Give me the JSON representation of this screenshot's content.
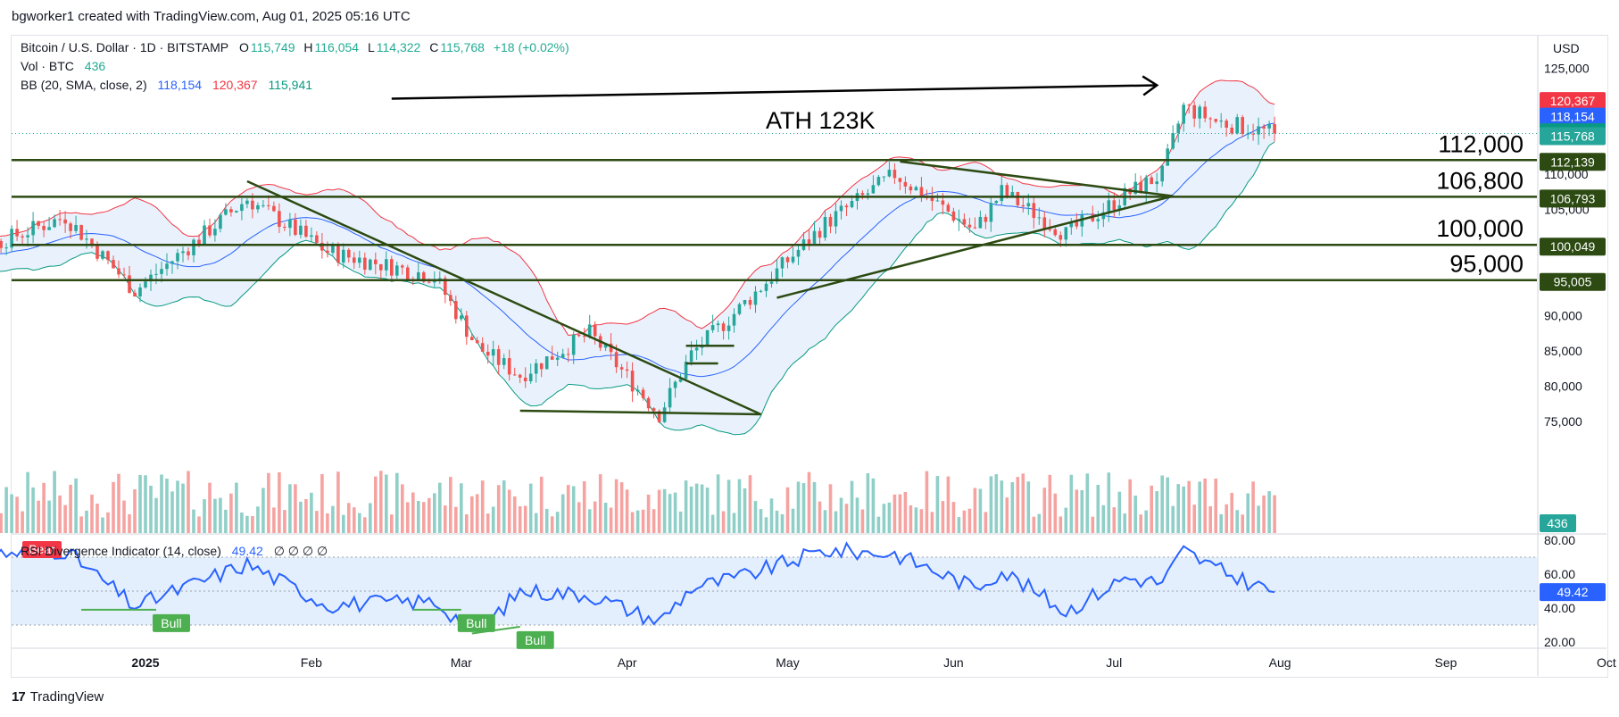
{
  "header": {
    "text": "bgworker1 created with TradingView.com, Aug 01, 2025 05:16 UTC"
  },
  "footer": {
    "brand": "TradingView"
  },
  "legend": {
    "symbol": "Bitcoin / U.S. Dollar · 1D · BITSTAMP",
    "o_label": "O",
    "o": "115,749",
    "h_label": "H",
    "h": "116,054",
    "l_label": "L",
    "l": "114,322",
    "c_label": "C",
    "c": "115,768",
    "change": "+18 (+0.02%)",
    "vol_label": "Vol · BTC",
    "vol": "436",
    "bb_label": "BB (20, SMA, close, 2)",
    "bb_basis": "118,154",
    "bb_upper": "120,367",
    "bb_lower": "115,941",
    "rsi_label": "RSI Divergence Indicator (14, close)",
    "rsi_value": "49.42",
    "rsi_na": "∅ ∅ ∅ ∅"
  },
  "colors": {
    "up": "#26a69a",
    "down": "#ef5350",
    "vol_up": "#8fcfc7",
    "vol_down": "#f5a3a1",
    "bb_basis": "#2962ff",
    "bb_upper": "#f23645",
    "bb_lower": "#089981",
    "bb_fill": "#e9f2fc",
    "drawing": "#2c4a12",
    "rsi_line": "#2962ff",
    "rsi_band": "#e3effd",
    "bull": "#4caf50"
  },
  "chart_data": {
    "type": "candlestick",
    "currency": "USD",
    "price_axis_ticks": [
      75000,
      80000,
      85000,
      90000,
      95000,
      100000,
      105000,
      110000,
      115000,
      120000,
      125000
    ],
    "price_axis_tick_labels": [
      "75,000",
      "80,000",
      "85,000",
      "90,000",
      "95,000",
      "100,000",
      "105,000",
      "110,000",
      "115,000",
      "120,000",
      "125,000"
    ],
    "time_axis": [
      {
        "date": "2025-01-01",
        "label": "2025",
        "bold": true
      },
      {
        "date": "2025-02-01",
        "label": "Feb"
      },
      {
        "date": "2025-03-01",
        "label": "Mar"
      },
      {
        "date": "2025-04-01",
        "label": "Apr"
      },
      {
        "date": "2025-05-01",
        "label": "May"
      },
      {
        "date": "2025-06-01",
        "label": "Jun"
      },
      {
        "date": "2025-07-01",
        "label": "Jul"
      },
      {
        "date": "2025-08-01",
        "label": "Aug"
      },
      {
        "date": "2025-09-01",
        "label": "Sep"
      },
      {
        "date": "2025-10-01",
        "label": "Oct"
      }
    ],
    "price_path_dates": [
      "2024-11-22",
      "2024-12-05",
      "2024-12-17",
      "2024-12-30",
      "2025-01-20",
      "2025-02-04",
      "2025-02-24",
      "2025-03-04",
      "2025-03-12",
      "2025-03-25",
      "2025-04-07",
      "2025-04-13",
      "2025-04-22",
      "2025-05-08",
      "2025-05-21",
      "2025-06-05",
      "2025-06-10",
      "2025-06-22",
      "2025-07-03",
      "2025-07-10",
      "2025-07-14",
      "2025-07-20",
      "2025-07-31"
    ],
    "price_path_closes": [
      97500,
      100500,
      104000,
      93500,
      106500,
      99000,
      95500,
      85500,
      81500,
      87500,
      76000,
      84500,
      91000,
      103000,
      110000,
      102000,
      107500,
      101500,
      107000,
      110000,
      119500,
      117500,
      115768
    ],
    "rsi_path_dates": [
      "2024-11-22",
      "2024-12-05",
      "2024-12-17",
      "2024-12-30",
      "2025-01-20",
      "2025-02-04",
      "2025-02-24",
      "2025-03-04",
      "2025-03-12",
      "2025-03-25",
      "2025-04-07",
      "2025-04-13",
      "2025-04-22",
      "2025-05-08",
      "2025-05-21",
      "2025-06-05",
      "2025-06-10",
      "2025-06-22",
      "2025-07-03",
      "2025-07-10",
      "2025-07-14",
      "2025-07-20",
      "2025-07-31"
    ],
    "rsi_path_values": [
      70,
      72,
      74,
      41,
      66,
      42,
      44,
      25,
      50,
      48,
      32,
      52,
      58,
      74,
      72,
      52,
      62,
      38,
      58,
      55,
      74,
      63,
      49.42
    ],
    "rsi_axis_ticks": [
      20,
      40,
      60,
      80
    ],
    "rsi_axis_tick_labels": [
      "20.00",
      "40.00",
      "60.00",
      "80.00"
    ],
    "rsi_bands": [
      30,
      50,
      70
    ],
    "horizontal_levels": [
      {
        "price": 112000,
        "label": "112,000",
        "axis_tag": "112,139"
      },
      {
        "price": 106800,
        "label": "106,800",
        "axis_tag": "106,793"
      },
      {
        "price": 100000,
        "label": "100,000",
        "axis_tag": "100,049"
      },
      {
        "price": 95000,
        "label": "95,000",
        "axis_tag": "95,005"
      }
    ],
    "price_tags": [
      {
        "price": 120367,
        "label": "120,367",
        "color": "#f23645"
      },
      {
        "price": 118154,
        "label": "118,154",
        "color": "#2962ff"
      },
      {
        "price": 115941,
        "label": "115,941",
        "color": "#089981"
      },
      {
        "price": 115768,
        "label": "115,768",
        "color": "#26a69a"
      }
    ],
    "volume_tag": "436",
    "rsi_tag": "49.42",
    "annotations": [
      {
        "text": "ATH 123K"
      },
      {
        "text": "Bull"
      },
      {
        "text": "Bull"
      },
      {
        "text": "Bull"
      },
      {
        "text": "Bear"
      }
    ]
  }
}
